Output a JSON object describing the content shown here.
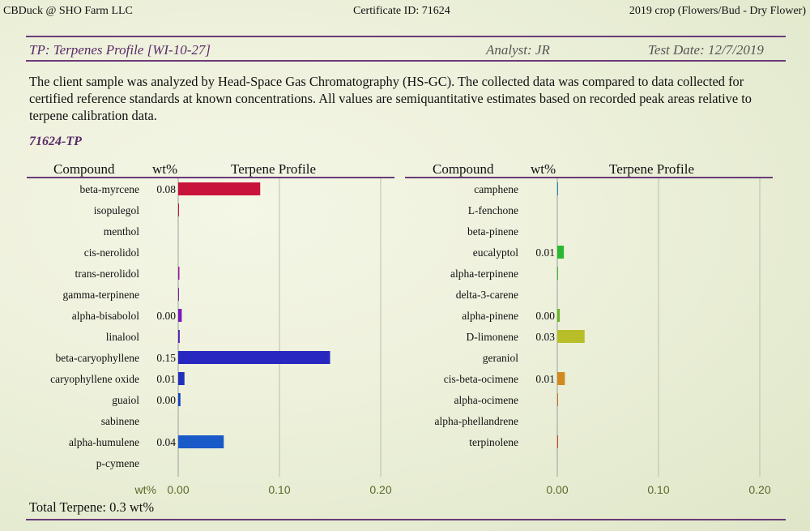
{
  "header": {
    "left": "CBDuck @ SHO Farm LLC",
    "center": "Certificate ID: 71624",
    "right": "2019 crop (Flowers/Bud - Dry Flower)"
  },
  "section": {
    "title": "TP: Terpenes Profile [WI-10-27]",
    "analyst": "Analyst: JR",
    "test_date": "Test Date: 12/7/2019"
  },
  "intro": "The client sample was analyzed by Head-Space Gas Chromatography (HS-GC).  The collected data was compared to data collected for certified reference standards at known concentrations.  All values are semiquantitative estimates based on recorded peak areas relative to terpene calibration data.",
  "sample_id": "71624-TP",
  "columns": {
    "compound": "Compound",
    "wt": "wt%",
    "profile": "Terpene Profile"
  },
  "total": "Total Terpene: 0.3 wt%",
  "chart_data": [
    {
      "type": "bar",
      "orientation": "horizontal",
      "xlim": [
        0,
        0.2
      ],
      "xticks": [
        "0.00",
        "0.10",
        "0.20"
      ],
      "xtick_values": [
        0,
        0.1,
        0.2
      ],
      "xlabel": "wt%",
      "grid": true,
      "rows": [
        {
          "name": "beta-myrcene",
          "label": "0.08",
          "value": 0.081,
          "color": "#c8143c"
        },
        {
          "name": "isopulegol",
          "label": "",
          "value": 0.0006,
          "color": "#c8143c"
        },
        {
          "name": "menthol",
          "label": "",
          "value": 0,
          "color": "#b01a6a"
        },
        {
          "name": "cis-nerolidol",
          "label": "",
          "value": 0,
          "color": "#9a1a8a"
        },
        {
          "name": "trans-nerolidol",
          "label": "",
          "value": 0.0012,
          "color": "#9a1aa0"
        },
        {
          "name": "gamma-terpinene",
          "label": "",
          "value": 0.0006,
          "color": "#8a1aaa"
        },
        {
          "name": "alpha-bisabolol",
          "label": "0.00",
          "value": 0.0035,
          "color": "#7a1aba"
        },
        {
          "name": "linalool",
          "label": "",
          "value": 0.0015,
          "color": "#5a1aba"
        },
        {
          "name": "beta-caryophyllene",
          "label": "0.15",
          "value": 0.15,
          "color": "#2828c0"
        },
        {
          "name": "caryophyllene oxide",
          "label": "0.01",
          "value": 0.0062,
          "color": "#2030b8"
        },
        {
          "name": "guaiol",
          "label": "0.00",
          "value": 0.0022,
          "color": "#1a40c0"
        },
        {
          "name": "sabinene",
          "label": "",
          "value": 0,
          "color": "#1a50c0"
        },
        {
          "name": "alpha-humulene",
          "label": "0.04",
          "value": 0.045,
          "color": "#1a5ac8"
        },
        {
          "name": "p-cymene",
          "label": "",
          "value": 0,
          "color": "#1a6ac8"
        }
      ]
    },
    {
      "type": "bar",
      "orientation": "horizontal",
      "xlim": [
        0,
        0.2
      ],
      "xticks": [
        "0.00",
        "0.10",
        "0.20"
      ],
      "xtick_values": [
        0,
        0.1,
        0.2
      ],
      "grid": true,
      "rows": [
        {
          "name": "camphene",
          "label": "",
          "value": 0.0006,
          "color": "#1a8ab0"
        },
        {
          "name": "L-fenchone",
          "label": "",
          "value": 0,
          "color": "#1a9a9a"
        },
        {
          "name": "beta-pinene",
          "label": "",
          "value": 0,
          "color": "#1aa080"
        },
        {
          "name": "eucalyptol",
          "label": "0.01",
          "value": 0.0065,
          "color": "#2ab830"
        },
        {
          "name": "alpha-terpinene",
          "label": "",
          "value": 0.0004,
          "color": "#40b830"
        },
        {
          "name": "delta-3-carene",
          "label": "",
          "value": 0,
          "color": "#58b828"
        },
        {
          "name": "alpha-pinene",
          "label": "0.00",
          "value": 0.0025,
          "color": "#6ab828"
        },
        {
          "name": "D-limonene",
          "label": "0.03",
          "value": 0.027,
          "color": "#b8be28"
        },
        {
          "name": "geraniol",
          "label": "",
          "value": 0,
          "color": "#c8b028"
        },
        {
          "name": "cis-beta-ocimene",
          "label": "0.01",
          "value": 0.0075,
          "color": "#d08a20"
        },
        {
          "name": "alpha-ocimene",
          "label": "",
          "value": 0.0004,
          "color": "#d07020"
        },
        {
          "name": "alpha-phellandrene",
          "label": "",
          "value": 0,
          "color": "#d05a20"
        },
        {
          "name": "terpinolene",
          "label": "",
          "value": 0.0008,
          "color": "#d04020"
        }
      ]
    }
  ]
}
